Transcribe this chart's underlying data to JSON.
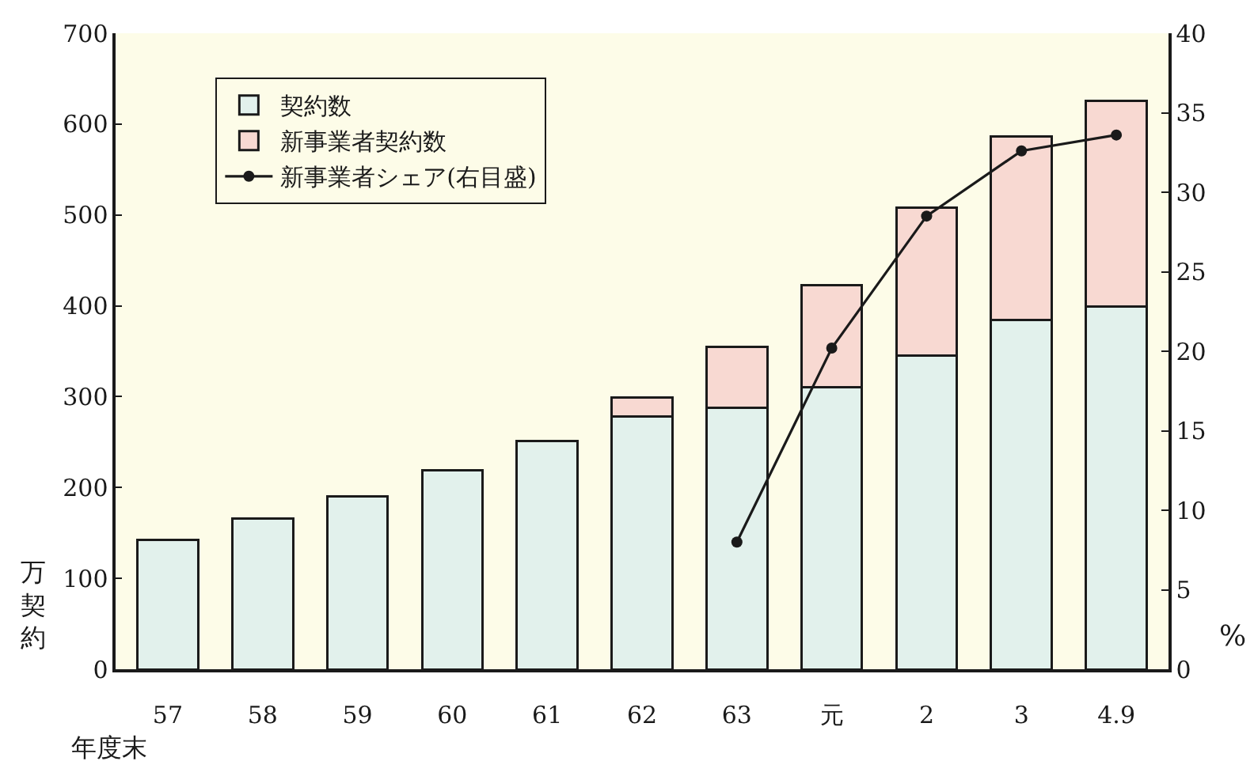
{
  "chart_data": {
    "type": "bar",
    "stacked": true,
    "categories": [
      "57",
      "58",
      "59",
      "60",
      "61",
      "62",
      "63",
      "元",
      "2",
      "3",
      "4.9"
    ],
    "series": [
      {
        "name": "契約数",
        "color": "#e2f1ec",
        "values": [
          142,
          166,
          190,
          219,
          251,
          278,
          288,
          310,
          345,
          384,
          399
        ]
      },
      {
        "name": "新事業者契約数",
        "color": "#f8d9d2",
        "values": [
          null,
          null,
          null,
          null,
          null,
          21,
          67,
          113,
          163,
          202,
          227
        ]
      },
      {
        "name": "新事業者シェア(右目盛)",
        "type": "line",
        "axis": "y2",
        "color": "#1a1a1a",
        "values": [
          null,
          null,
          null,
          null,
          null,
          null,
          8,
          20.2,
          28.5,
          32.6,
          33.6
        ]
      }
    ],
    "ylim": [
      0,
      700
    ],
    "yticks": [
      0,
      100,
      200,
      300,
      400,
      500,
      600,
      700
    ],
    "y2lim": [
      0,
      40
    ],
    "y2ticks": [
      0,
      5,
      10,
      15,
      20,
      25,
      30,
      35,
      40
    ],
    "ylabel": "万契約",
    "y2label": "%",
    "xlabel": "年度末",
    "marker": "circle",
    "line_style": "solid",
    "legend": "top left"
  }
}
